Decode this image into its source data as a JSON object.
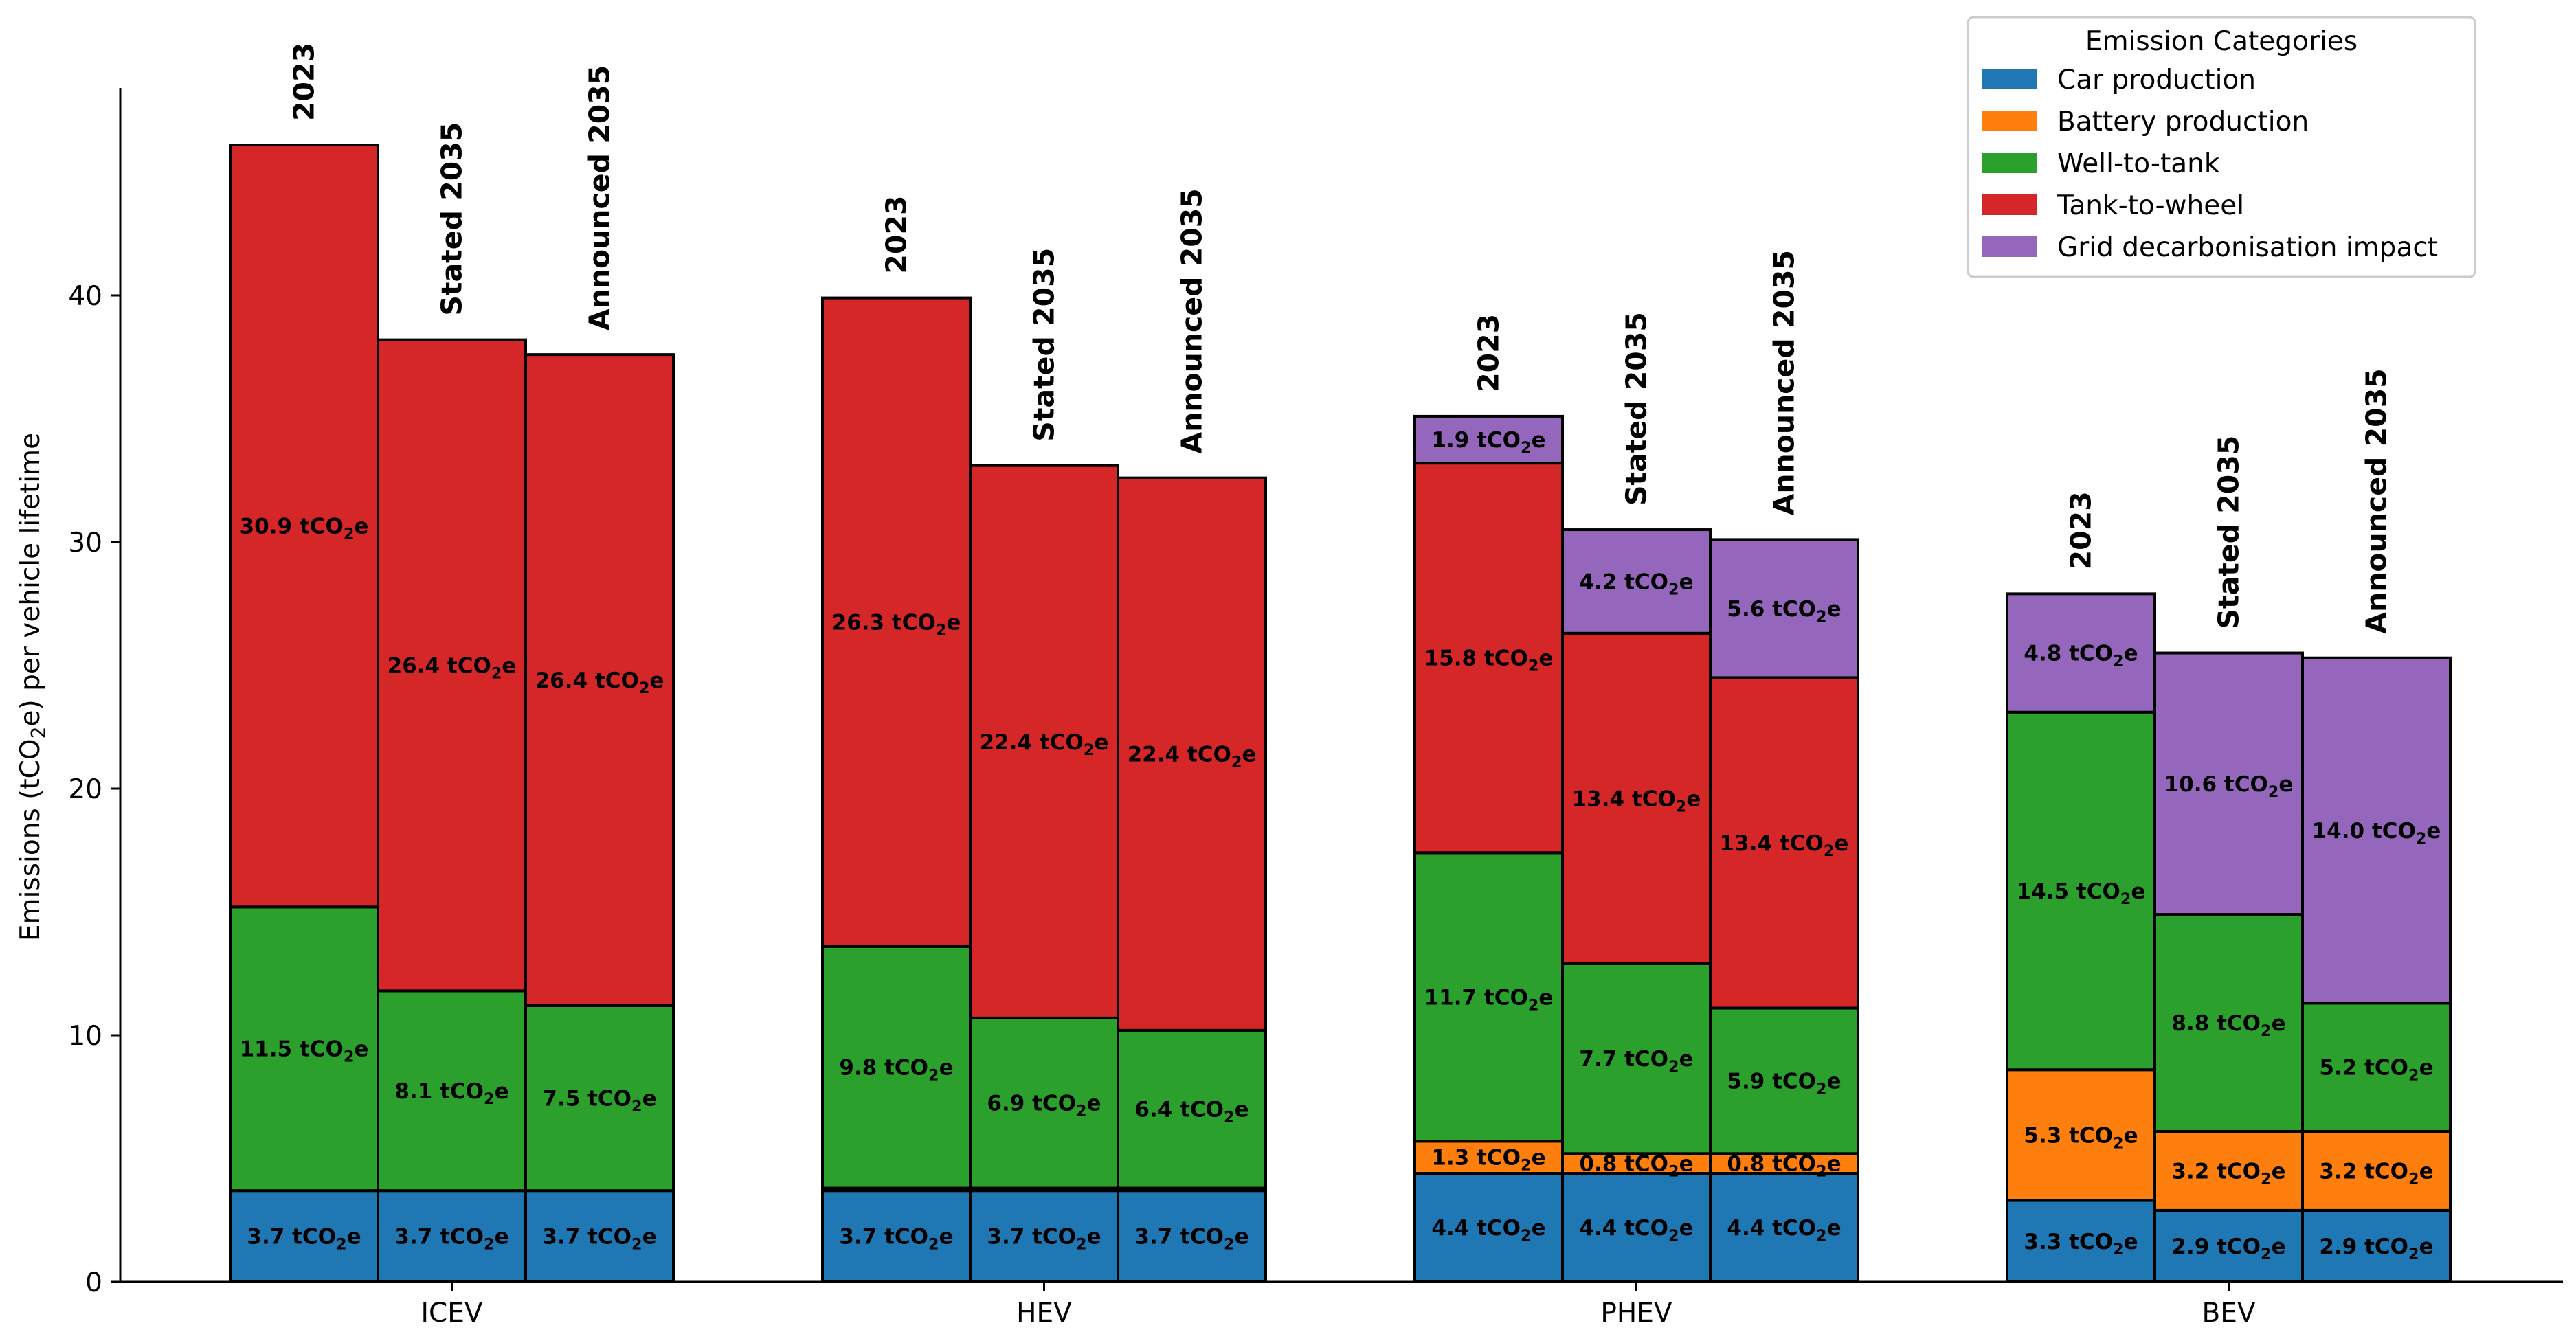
{
  "chart_data": {
    "type": "bar",
    "stacked": true,
    "ylabel_parts": [
      "Emissions (tCO",
      "2",
      "e) per vehicle lifetime"
    ],
    "unit_parts": [
      "tCO",
      "2",
      "e"
    ],
    "ylim": [
      0,
      48
    ],
    "yticks": [
      "0",
      "10",
      "20",
      "30",
      "40"
    ],
    "categories": [
      "ICEV",
      "HEV",
      "PHEV",
      "BEV"
    ],
    "scenarios": [
      "2023",
      "Stated 2035",
      "Announced 2035"
    ],
    "legend": {
      "title": "Emission Categories",
      "position": "top-right",
      "entries": [
        {
          "key": "car",
          "label": "Car production",
          "color": "#1f77b4"
        },
        {
          "key": "battery",
          "label": "Battery production",
          "color": "#ff7f0e"
        },
        {
          "key": "wtt",
          "label": "Well-to-tank",
          "color": "#2ca02c"
        },
        {
          "key": "ttw",
          "label": "Tank-to-wheel",
          "color": "#d62728"
        },
        {
          "key": "grid",
          "label": "Grid decarbonisation impact",
          "color": "#9467bd"
        }
      ]
    },
    "bars": [
      {
        "category": "ICEV",
        "scenario": "2023",
        "segments": [
          {
            "key": "car",
            "value": 3.7,
            "label": "3.7"
          },
          {
            "key": "wtt",
            "value": 11.5,
            "label": "11.5"
          },
          {
            "key": "ttw",
            "value": 30.9,
            "label": "30.9"
          }
        ]
      },
      {
        "category": "ICEV",
        "scenario": "Stated 2035",
        "segments": [
          {
            "key": "car",
            "value": 3.7,
            "label": "3.7"
          },
          {
            "key": "wtt",
            "value": 8.1,
            "label": "8.1"
          },
          {
            "key": "ttw",
            "value": 26.4,
            "label": "26.4"
          }
        ]
      },
      {
        "category": "ICEV",
        "scenario": "Announced 2035",
        "segments": [
          {
            "key": "car",
            "value": 3.7,
            "label": "3.7"
          },
          {
            "key": "wtt",
            "value": 7.5,
            "label": "7.5"
          },
          {
            "key": "ttw",
            "value": 26.4,
            "label": "26.4"
          }
        ]
      },
      {
        "category": "HEV",
        "scenario": "2023",
        "segments": [
          {
            "key": "car",
            "value": 3.7,
            "label": "3.7"
          },
          {
            "key": "battery",
            "value": 0.1,
            "label": null
          },
          {
            "key": "wtt",
            "value": 9.8,
            "label": "9.8"
          },
          {
            "key": "ttw",
            "value": 26.3,
            "label": "26.3"
          }
        ]
      },
      {
        "category": "HEV",
        "scenario": "Stated 2035",
        "segments": [
          {
            "key": "car",
            "value": 3.7,
            "label": "3.7"
          },
          {
            "key": "battery",
            "value": 0.1,
            "label": null
          },
          {
            "key": "wtt",
            "value": 6.9,
            "label": "6.9"
          },
          {
            "key": "ttw",
            "value": 22.4,
            "label": "22.4"
          }
        ]
      },
      {
        "category": "HEV",
        "scenario": "Announced 2035",
        "segments": [
          {
            "key": "car",
            "value": 3.7,
            "label": "3.7"
          },
          {
            "key": "battery",
            "value": 0.1,
            "label": null
          },
          {
            "key": "wtt",
            "value": 6.4,
            "label": "6.4"
          },
          {
            "key": "ttw",
            "value": 22.4,
            "label": "22.4"
          }
        ]
      },
      {
        "category": "PHEV",
        "scenario": "2023",
        "segments": [
          {
            "key": "car",
            "value": 4.4,
            "label": "4.4"
          },
          {
            "key": "battery",
            "value": 1.3,
            "label": "1.3"
          },
          {
            "key": "wtt",
            "value": 11.7,
            "label": "11.7"
          },
          {
            "key": "ttw",
            "value": 15.8,
            "label": "15.8"
          },
          {
            "key": "grid",
            "value": 1.9,
            "label": "1.9"
          }
        ]
      },
      {
        "category": "PHEV",
        "scenario": "Stated 2035",
        "segments": [
          {
            "key": "car",
            "value": 4.4,
            "label": "4.4"
          },
          {
            "key": "battery",
            "value": 0.8,
            "label": "0.8"
          },
          {
            "key": "wtt",
            "value": 7.7,
            "label": "7.7"
          },
          {
            "key": "ttw",
            "value": 13.4,
            "label": "13.4"
          },
          {
            "key": "grid",
            "value": 4.2,
            "label": "4.2"
          }
        ]
      },
      {
        "category": "PHEV",
        "scenario": "Announced 2035",
        "segments": [
          {
            "key": "car",
            "value": 4.4,
            "label": "4.4"
          },
          {
            "key": "battery",
            "value": 0.8,
            "label": "0.8"
          },
          {
            "key": "wtt",
            "value": 5.9,
            "label": "5.9"
          },
          {
            "key": "ttw",
            "value": 13.4,
            "label": "13.4"
          },
          {
            "key": "grid",
            "value": 5.6,
            "label": "5.6"
          }
        ]
      },
      {
        "category": "BEV",
        "scenario": "2023",
        "segments": [
          {
            "key": "car",
            "value": 3.3,
            "label": "3.3"
          },
          {
            "key": "battery",
            "value": 5.3,
            "label": "5.3"
          },
          {
            "key": "wtt",
            "value": 14.5,
            "label": "14.5"
          },
          {
            "key": "grid",
            "value": 4.8,
            "label": "4.8"
          }
        ]
      },
      {
        "category": "BEV",
        "scenario": "Stated 2035",
        "segments": [
          {
            "key": "car",
            "value": 2.9,
            "label": "2.9"
          },
          {
            "key": "battery",
            "value": 3.2,
            "label": "3.2"
          },
          {
            "key": "wtt",
            "value": 8.8,
            "label": "8.8"
          },
          {
            "key": "grid",
            "value": 10.6,
            "label": "10.6"
          }
        ]
      },
      {
        "category": "BEV",
        "scenario": "Announced 2035",
        "segments": [
          {
            "key": "car",
            "value": 2.9,
            "label": "2.9"
          },
          {
            "key": "battery",
            "value": 3.2,
            "label": "3.2"
          },
          {
            "key": "wtt",
            "value": 5.2,
            "label": "5.2"
          },
          {
            "key": "grid",
            "value": 14.0,
            "label": "14.0"
          }
        ]
      }
    ]
  }
}
